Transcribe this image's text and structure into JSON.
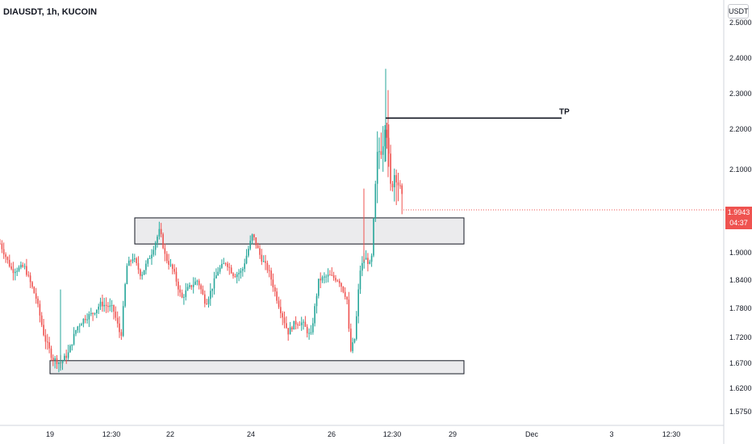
{
  "header": {
    "symbol_title": "DIAUSDT, 1h, KUCOIN",
    "currency_button": "USDT"
  },
  "price_badge": {
    "price": "1.9943",
    "countdown": "04:37"
  },
  "colors": {
    "up": "#26a69a",
    "down": "#ef5350",
    "zone_fill": "#ebebed",
    "zone_stroke": "#131722",
    "axis_text": "#131722",
    "axis_line": "#d1d4dc"
  },
  "chart_data": {
    "type": "candlestick",
    "title": "DIAUSDT, 1h, KUCOIN",
    "y_ticks": [
      "2.5000",
      "2.4000",
      "2.3000",
      "2.2000",
      "2.1000",
      "1.9900",
      "1.9000",
      "1.8400",
      "1.7800",
      "1.7200",
      "1.6700",
      "1.6200",
      "1.5750"
    ],
    "x_ticks": [
      "19",
      "12:30",
      "22",
      "24",
      "26",
      "12:30",
      "29",
      "Dec",
      "3",
      "12:30"
    ],
    "last_price": 1.9943,
    "price_path": [
      [
        0,
        1.92
      ],
      [
        15,
        1.86
      ],
      [
        30,
        1.87
      ],
      [
        45,
        1.8
      ],
      [
        55,
        1.72
      ],
      [
        65,
        1.68
      ],
      [
        75,
        1.67
      ],
      [
        85,
        1.69
      ],
      [
        95,
        1.74
      ],
      [
        105,
        1.76
      ],
      [
        115,
        1.77
      ],
      [
        125,
        1.79
      ],
      [
        140,
        1.78
      ],
      [
        150,
        1.72
      ],
      [
        157,
        1.87
      ],
      [
        165,
        1.89
      ],
      [
        175,
        1.85
      ],
      [
        188,
        1.9
      ],
      [
        198,
        1.95
      ],
      [
        205,
        1.89
      ],
      [
        215,
        1.86
      ],
      [
        225,
        1.8
      ],
      [
        232,
        1.82
      ],
      [
        245,
        1.84
      ],
      [
        255,
        1.79
      ],
      [
        262,
        1.82
      ],
      [
        270,
        1.86
      ],
      [
        280,
        1.88
      ],
      [
        290,
        1.85
      ],
      [
        300,
        1.86
      ],
      [
        313,
        1.94
      ],
      [
        323,
        1.89
      ],
      [
        333,
        1.86
      ],
      [
        345,
        1.79
      ],
      [
        357,
        1.73
      ],
      [
        365,
        1.75
      ],
      [
        375,
        1.75
      ],
      [
        385,
        1.72
      ],
      [
        395,
        1.84
      ],
      [
        408,
        1.85
      ],
      [
        420,
        1.84
      ],
      [
        430,
        1.8
      ],
      [
        434,
        1.69
      ],
      [
        440,
        1.72
      ],
      [
        446,
        1.86
      ],
      [
        452,
        1.89
      ],
      [
        460,
        1.87
      ],
      [
        468,
        2.14
      ],
      [
        474,
        2.16
      ],
      [
        478,
        2.24
      ],
      [
        484,
        2.05
      ],
      [
        490,
        2.1
      ],
      [
        496,
        2.04
      ],
      [
        500,
        1.994
      ]
    ],
    "zones": [
      {
        "name": "resistance-zone",
        "from": 1.919,
        "to": 1.976,
        "start_x": "20",
        "end_x": "28"
      },
      {
        "name": "support-zone",
        "from": 1.649,
        "to": 1.675,
        "start_x": "19",
        "end_x": "28"
      }
    ],
    "target": {
      "label": "TP",
      "price": 2.231,
      "start_x": "27",
      "end_x": "29"
    }
  }
}
